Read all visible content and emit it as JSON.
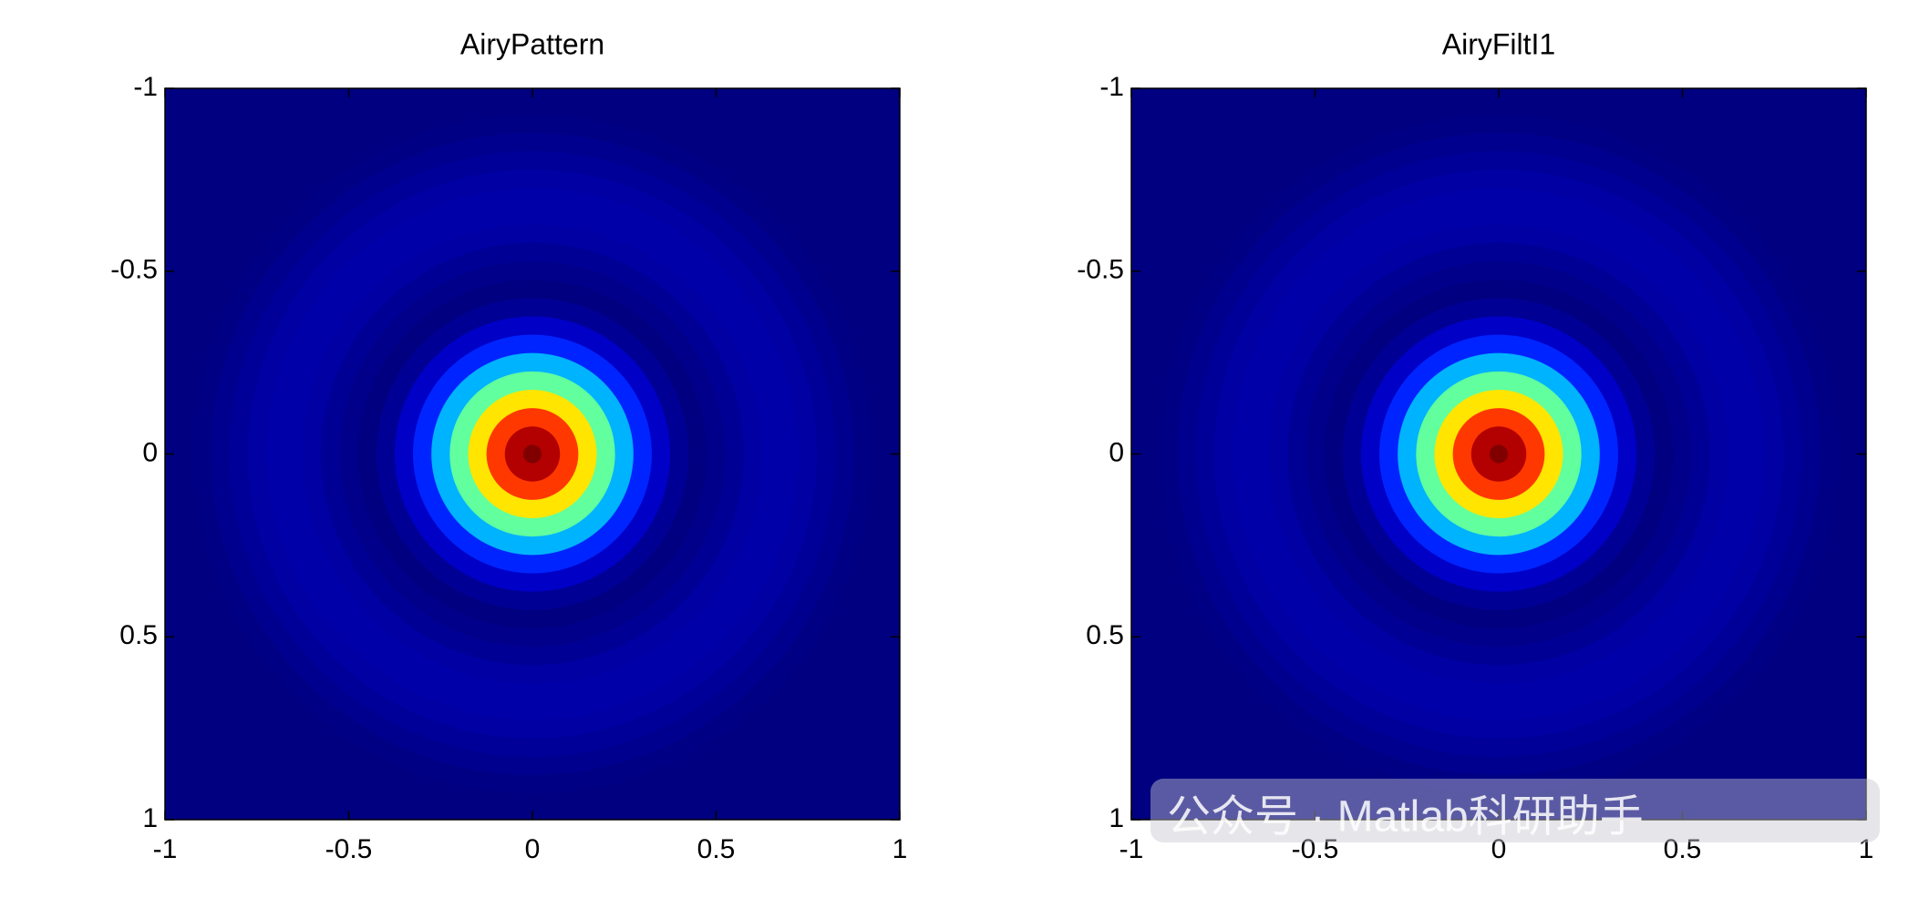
{
  "chart_data": [
    {
      "type": "radial-heatmap",
      "title": "AiryPattern",
      "colormap": "jet",
      "clim": [
        0,
        1
      ],
      "xlim": [
        -1,
        1
      ],
      "ylim": [
        -1,
        1
      ],
      "y_direction": "reverse",
      "xticks": [
        -1,
        -0.5,
        0,
        0.5,
        1
      ],
      "yticks": [
        -1,
        -0.5,
        0,
        0.5,
        1
      ],
      "radius": [
        0,
        0.05,
        0.1,
        0.15,
        0.2,
        0.25,
        0.3,
        0.35,
        0.4,
        0.45,
        0.5,
        0.55,
        0.6,
        0.65,
        0.7,
        0.75,
        0.8,
        0.85,
        0.9
      ],
      "values": [
        1,
        0.95,
        0.82,
        0.65,
        0.47,
        0.3,
        0.16,
        0.07,
        0.02,
        0,
        0.01,
        0.02,
        0.035,
        0.04,
        0.04,
        0.035,
        0.025,
        0.015,
        0.005
      ]
    },
    {
      "type": "radial-heatmap",
      "title": "AiryFiltI1",
      "colormap": "jet",
      "clim": [
        0,
        1
      ],
      "xlim": [
        -1,
        1
      ],
      "ylim": [
        -1,
        1
      ],
      "y_direction": "reverse",
      "xticks": [
        -1,
        -0.5,
        0,
        0.5,
        1
      ],
      "yticks": [
        -1,
        -0.5,
        0,
        0.5,
        1
      ],
      "radius": [
        0,
        0.05,
        0.1,
        0.15,
        0.2,
        0.25,
        0.3,
        0.35,
        0.4,
        0.45,
        0.5,
        0.55,
        0.6,
        0.65,
        0.7,
        0.75,
        0.8,
        0.85,
        0.9
      ],
      "values": [
        1,
        0.95,
        0.82,
        0.65,
        0.47,
        0.3,
        0.16,
        0.07,
        0.02,
        0,
        0.01,
        0.02,
        0.035,
        0.04,
        0.04,
        0.035,
        0.025,
        0.015,
        0.005
      ]
    }
  ],
  "watermark": "公众号 · Matlab科研助手"
}
